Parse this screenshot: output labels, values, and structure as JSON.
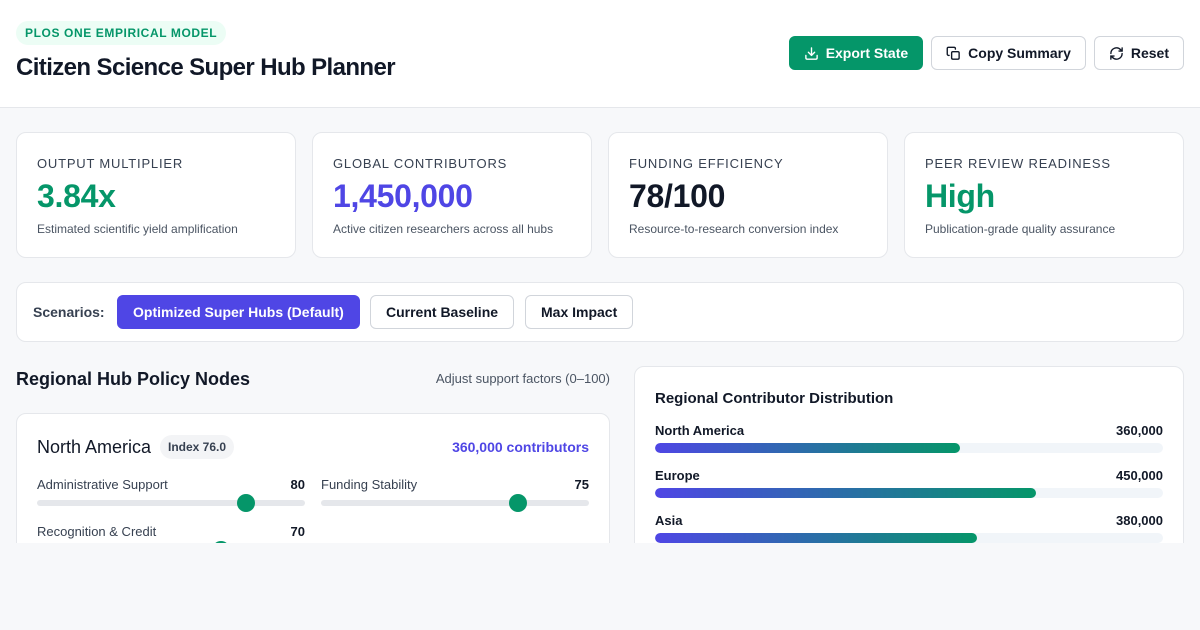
{
  "header": {
    "badge": "PLOS ONE EMPIRICAL MODEL",
    "title": "Citizen Science Super Hub Planner",
    "actions": [
      {
        "label": "Export State",
        "icon": "download-icon"
      },
      {
        "label": "Copy Summary",
        "icon": "copy-icon"
      },
      {
        "label": "Reset",
        "icon": "refresh-icon"
      }
    ]
  },
  "stats": [
    {
      "label": "OUTPUT MULTIPLIER",
      "value": "3.84x",
      "desc": "Estimated scientific yield amplification",
      "color": "#059669"
    },
    {
      "label": "GLOBAL CONTRIBUTORS",
      "value": "1,450,000",
      "desc": "Active citizen researchers across all hubs",
      "color": "#4f46e5"
    },
    {
      "label": "FUNDING EFFICIENCY",
      "value": "78/100",
      "desc": "Resource-to-research conversion index",
      "color": "#111827"
    },
    {
      "label": "PEER REVIEW READINESS",
      "value": "High",
      "desc": "Publication-grade quality assurance",
      "color": "#059669"
    }
  ],
  "scenarios": {
    "label": "Scenarios:",
    "options": [
      "Optimized Super Hubs (Default)",
      "Current Baseline",
      "Max Impact"
    ],
    "active": 0
  },
  "policy": {
    "title": "Regional Hub Policy Nodes",
    "hint": "Adjust support factors (0–100)",
    "region": {
      "name": "North America",
      "index": "Index 76.0",
      "contributors": "360,000 contributors",
      "factors": [
        {
          "label": "Administrative Support",
          "value": 80
        },
        {
          "label": "Funding Stability",
          "value": 75
        },
        {
          "label": "Recognition & Credit",
          "value": 70
        }
      ]
    }
  },
  "distribution": {
    "title": "Regional Contributor Distribution",
    "max": 600000,
    "rows": [
      {
        "name": "North America",
        "value_label": "360,000",
        "value": 360000
      },
      {
        "name": "Europe",
        "value_label": "450,000",
        "value": 450000
      },
      {
        "name": "Asia",
        "value_label": "380,000",
        "value": 380000
      }
    ]
  },
  "colors": {
    "accent": "#059669",
    "brand": "#4f46e5"
  }
}
